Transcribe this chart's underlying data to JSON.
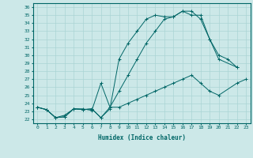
{
  "xlabel": "Humidex (Indice chaleur)",
  "background_color": "#cce8e8",
  "grid_color": "#aad4d4",
  "line_color": "#006666",
  "xlim": [
    -0.5,
    23.5
  ],
  "ylim": [
    21.5,
    36.5
  ],
  "yticks": [
    22,
    23,
    24,
    25,
    26,
    27,
    28,
    29,
    30,
    31,
    32,
    33,
    34,
    35,
    36
  ],
  "xticks": [
    0,
    1,
    2,
    3,
    4,
    5,
    6,
    7,
    8,
    9,
    10,
    11,
    12,
    13,
    14,
    15,
    16,
    17,
    18,
    19,
    20,
    21,
    22,
    23
  ],
  "series": [
    {
      "x": [
        0,
        1,
        2,
        3,
        4,
        5,
        6,
        7,
        8,
        9,
        10,
        11,
        12,
        13,
        14,
        15,
        16,
        17,
        18,
        19,
        20,
        21,
        22
      ],
      "y": [
        23.5,
        23.2,
        22.2,
        22.3,
        23.3,
        23.2,
        23.3,
        22.2,
        23.3,
        29.5,
        31.5,
        33.0,
        34.5,
        35.0,
        34.8,
        34.8,
        35.5,
        35.5,
        34.5,
        32.0,
        30.0,
        29.5,
        28.5
      ]
    },
    {
      "x": [
        0,
        1,
        2,
        3,
        4,
        5,
        6,
        7,
        8,
        9,
        10,
        11,
        12,
        13,
        14,
        15,
        16,
        17,
        18,
        19,
        20,
        22
      ],
      "y": [
        23.5,
        23.2,
        22.2,
        22.3,
        23.3,
        23.2,
        23.3,
        22.2,
        23.5,
        25.5,
        27.5,
        29.5,
        31.5,
        33.0,
        34.5,
        34.8,
        35.5,
        35.0,
        35.0,
        32.0,
        29.5,
        28.5
      ]
    },
    {
      "x": [
        0,
        1,
        2,
        3,
        4,
        5,
        6,
        7,
        8,
        9,
        10,
        11,
        12,
        13,
        14,
        15,
        16,
        17,
        18,
        19,
        20,
        22,
        23
      ],
      "y": [
        23.5,
        23.2,
        22.2,
        22.5,
        23.3,
        23.3,
        23.1,
        26.5,
        23.5,
        23.5,
        24.0,
        24.5,
        25.0,
        25.5,
        26.0,
        26.5,
        27.0,
        27.5,
        26.5,
        25.5,
        25.0,
        26.5,
        27.0
      ]
    }
  ]
}
